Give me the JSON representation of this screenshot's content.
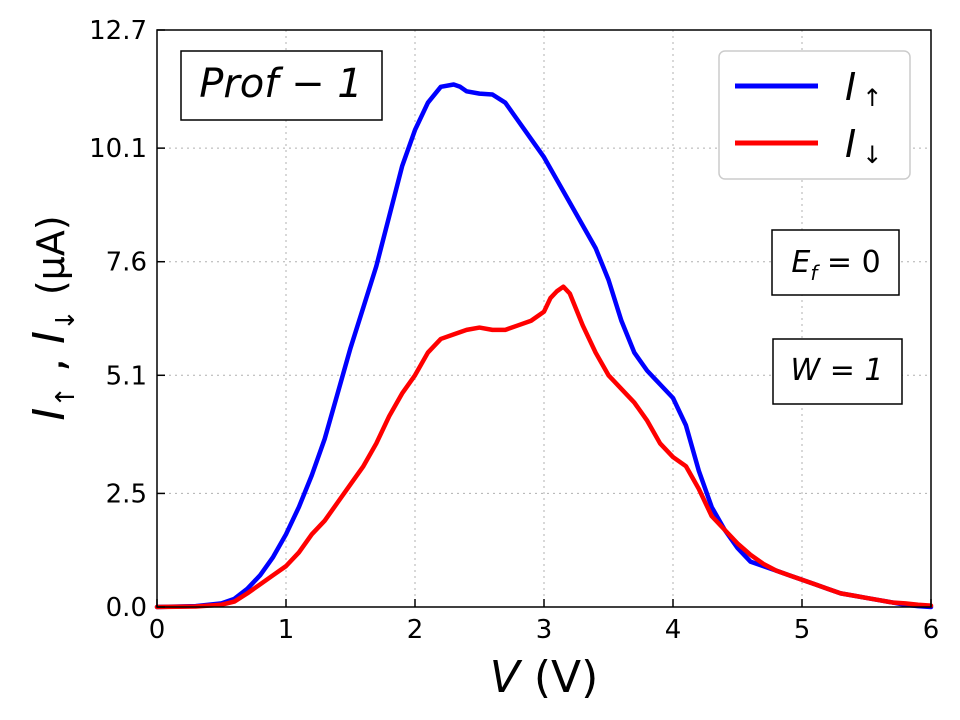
{
  "chart_data": {
    "type": "line",
    "title": "",
    "xlabel": {
      "var": "V",
      "unit": " (V)"
    },
    "ylabel": {
      "text": "I",
      "up": "↑",
      "sep": " , ",
      "down": "↓",
      "unit": "(μA)"
    },
    "xlim": [
      0,
      6
    ],
    "ylim": [
      0,
      12.7
    ],
    "xticks": [
      0,
      1,
      2,
      3,
      4,
      5,
      6
    ],
    "xtick_labels": [
      "0",
      "1",
      "2",
      "3",
      "4",
      "5",
      "6"
    ],
    "yticks": [
      0,
      2.5,
      5.1,
      7.6,
      10.1,
      12.7
    ],
    "ytick_labels": [
      "0.0",
      "2.5",
      "5.1",
      "7.6",
      "10.1",
      "12.7"
    ],
    "grid": true,
    "legend_position": "top-right",
    "series": [
      {
        "name": "I↑",
        "label_main": "I",
        "label_arrow": "↑",
        "color": "#0000ff",
        "x": [
          0,
          0.3,
          0.5,
          0.6,
          0.7,
          0.8,
          0.9,
          1.0,
          1.1,
          1.2,
          1.3,
          1.4,
          1.5,
          1.6,
          1.7,
          1.8,
          1.9,
          2.0,
          2.1,
          2.2,
          2.3,
          2.35,
          2.4,
          2.5,
          2.6,
          2.7,
          2.8,
          2.9,
          3.0,
          3.1,
          3.2,
          3.3,
          3.4,
          3.5,
          3.6,
          3.7,
          3.8,
          3.9,
          4.0,
          4.1,
          4.2,
          4.3,
          4.4,
          4.5,
          4.6,
          4.7,
          4.8,
          4.9,
          5.0,
          5.1,
          5.2,
          5.3,
          5.4,
          5.5,
          5.6,
          5.7,
          5.8,
          5.9,
          6.0
        ],
        "values": [
          0,
          0.02,
          0.08,
          0.18,
          0.4,
          0.7,
          1.1,
          1.6,
          2.2,
          2.9,
          3.7,
          4.7,
          5.7,
          6.6,
          7.5,
          8.6,
          9.7,
          10.5,
          11.1,
          11.45,
          11.5,
          11.45,
          11.35,
          11.3,
          11.28,
          11.1,
          10.7,
          10.3,
          9.9,
          9.4,
          8.9,
          8.4,
          7.9,
          7.2,
          6.3,
          5.6,
          5.2,
          4.9,
          4.6,
          4.0,
          3.0,
          2.2,
          1.7,
          1.3,
          1.0,
          0.9,
          0.8,
          0.7,
          0.6,
          0.5,
          0.4,
          0.3,
          0.25,
          0.2,
          0.15,
          0.1,
          0.05,
          0.02,
          0.0
        ]
      },
      {
        "name": "I↓",
        "label_main": "I",
        "label_arrow": "↓",
        "color": "#ff0000",
        "x": [
          0,
          0.3,
          0.5,
          0.6,
          0.7,
          0.8,
          0.9,
          1.0,
          1.1,
          1.2,
          1.3,
          1.4,
          1.5,
          1.6,
          1.7,
          1.8,
          1.9,
          2.0,
          2.1,
          2.2,
          2.3,
          2.4,
          2.5,
          2.6,
          2.7,
          2.8,
          2.9,
          3.0,
          3.05,
          3.1,
          3.15,
          3.2,
          3.3,
          3.4,
          3.5,
          3.6,
          3.7,
          3.8,
          3.9,
          4.0,
          4.1,
          4.2,
          4.3,
          4.4,
          4.5,
          4.6,
          4.7,
          4.8,
          4.9,
          5.0,
          5.1,
          5.2,
          5.3,
          5.4,
          5.5,
          5.6,
          5.7,
          5.8,
          5.9,
          6.0
        ],
        "values": [
          0,
          0.01,
          0.05,
          0.12,
          0.3,
          0.5,
          0.7,
          0.9,
          1.2,
          1.6,
          1.9,
          2.3,
          2.7,
          3.1,
          3.6,
          4.2,
          4.7,
          5.1,
          5.6,
          5.9,
          6.0,
          6.1,
          6.15,
          6.1,
          6.1,
          6.2,
          6.3,
          6.5,
          6.8,
          6.95,
          7.05,
          6.9,
          6.2,
          5.6,
          5.1,
          4.8,
          4.5,
          4.1,
          3.6,
          3.3,
          3.1,
          2.6,
          2.0,
          1.7,
          1.4,
          1.15,
          0.95,
          0.8,
          0.7,
          0.6,
          0.5,
          0.4,
          0.3,
          0.25,
          0.2,
          0.15,
          0.1,
          0.08,
          0.05,
          0.03
        ]
      }
    ],
    "annotations": {
      "profile": "Prof − 1",
      "ef": {
        "main": "E",
        "sub": "f",
        "rest": " = 0"
      },
      "w": "W = 1"
    }
  }
}
